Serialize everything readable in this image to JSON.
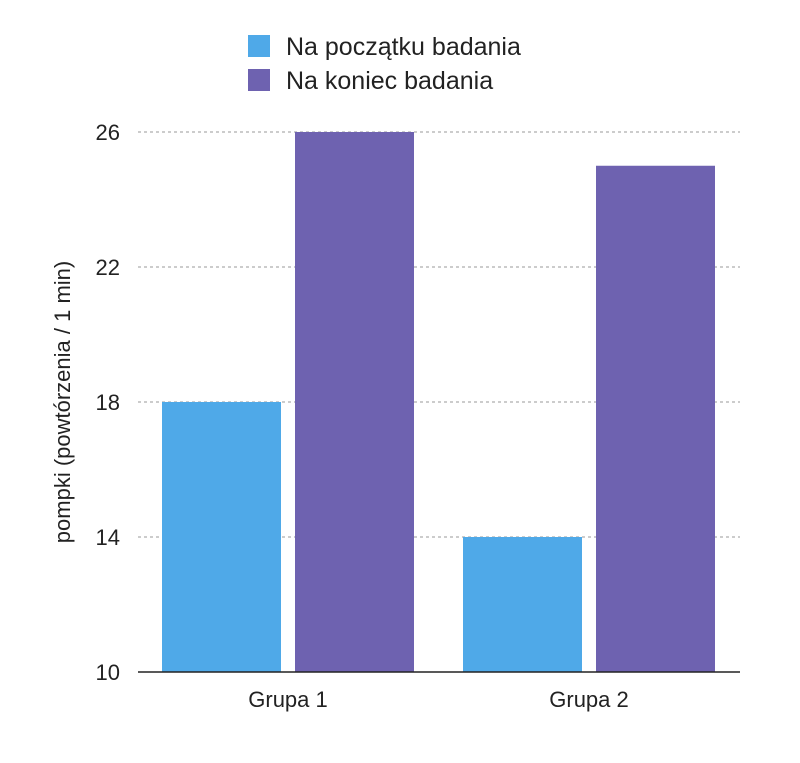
{
  "chart_data": {
    "type": "bar",
    "categories": [
      "Grupa 1",
      "Grupa 2"
    ],
    "series": [
      {
        "name": "Na początku badania",
        "color": "#4FA9E8",
        "values": [
          18,
          14
        ]
      },
      {
        "name": "Na koniec badania",
        "color": "#6E62B0",
        "values": [
          26,
          25
        ]
      }
    ],
    "ylabel": "pompki (powtórzenia / 1 min)",
    "ylim": [
      10,
      26
    ],
    "yticks": [
      "10",
      "14",
      "18",
      "22",
      "26"
    ],
    "grid": true,
    "legend_position": "top-center"
  }
}
